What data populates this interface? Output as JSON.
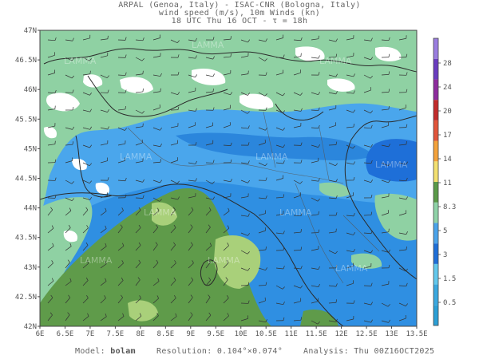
{
  "header": {
    "line1": "ARPAL (Genoa, Italy)  -  ISAC-CNR (Bologna, Italy)",
    "line2": "wind speed (m/s), 10m Winds (kn)",
    "line3": "18 UTC Thu 16 OCT  -  τ = 18h"
  },
  "axes": {
    "lat_labels": [
      "47N",
      "46.5N",
      "46N",
      "45.5N",
      "45N",
      "44.5N",
      "44N",
      "43.5N",
      "43N",
      "42.5N",
      "42N"
    ],
    "lon_labels": [
      "6E",
      "6.5E",
      "7E",
      "7.5E",
      "8E",
      "8.5E",
      "9E",
      "9.5E",
      "10E",
      "10.5E",
      "11E",
      "11.5E",
      "12E",
      "12.5E",
      "13E",
      "13.5E"
    ],
    "lat_range": [
      42,
      47
    ],
    "lon_range": [
      6,
      13.5
    ]
  },
  "colorbar": {
    "labels": [
      "0.5",
      "1.5",
      "3",
      "5",
      "8.3",
      "11",
      "14",
      "17",
      "20",
      "24",
      "28"
    ],
    "colors": [
      "#2b9fd6",
      "#3aa8df",
      "#62c8ec",
      "#1e6fd8",
      "#4aa3ea",
      "#8fd3a8",
      "#5a9a48",
      "#f3e070",
      "#f4a23a",
      "#e2553a",
      "#c22b2b",
      "#8e2b9e",
      "#6a3cc0",
      "#9a7de0"
    ]
  },
  "watermark": "LAMMA",
  "footer": {
    "model_label": "Model:",
    "model": "bolam",
    "resolution_label": "Resolution:",
    "resolution": "0.104°×0.074°",
    "analysis_label": "Analysis:",
    "analysis": "Thu 00Z16OCT2025"
  }
}
